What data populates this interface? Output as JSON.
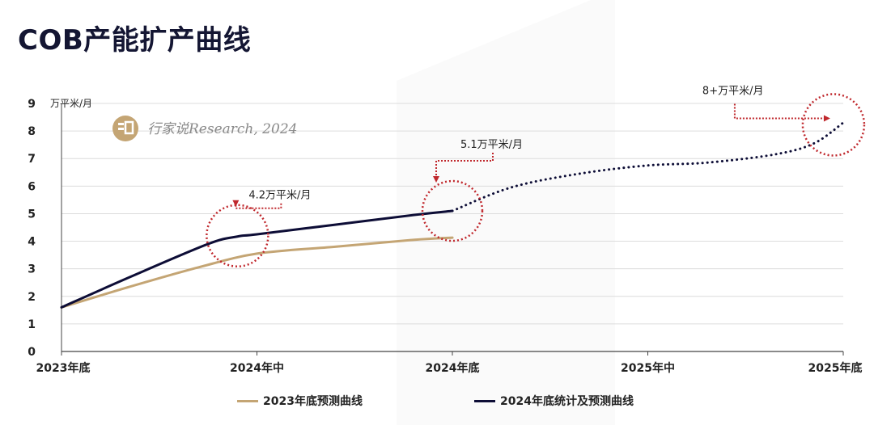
{
  "page": {
    "title": "COB产能扩产曲线"
  },
  "watermark": {
    "text": "行家说Research, 2024"
  },
  "colors": {
    "series1": "#c4a574",
    "series2": "#0d0d36",
    "highlight": "#c0282d",
    "grid": "#dcdcdc"
  },
  "chart_data": {
    "type": "line",
    "ylabel": "万平米/月",
    "ylim": [
      0,
      9
    ],
    "yticks": [
      "0",
      "1",
      "2",
      "3",
      "4",
      "5",
      "6",
      "7",
      "8",
      "9"
    ],
    "categories": [
      "2023年底",
      "2024年中",
      "2024年底",
      "2025年中",
      "2025年底"
    ],
    "grid": true,
    "legend_position": "bottom",
    "series": [
      {
        "name": "2023年底预测曲线",
        "style": "solid",
        "points": [
          [
            0,
            1.6
          ],
          [
            0.35,
            2.35
          ],
          [
            0.7,
            3.05
          ],
          [
            1.0,
            3.55
          ],
          [
            1.4,
            3.8
          ],
          [
            1.8,
            4.05
          ],
          [
            2.0,
            4.13
          ]
        ]
      },
      {
        "name": "2024年底统计及预测曲线",
        "style": "solid",
        "points": [
          [
            0,
            1.6
          ],
          [
            0.35,
            2.7
          ],
          [
            0.75,
            3.9
          ],
          [
            0.9,
            4.17
          ],
          [
            1.0,
            4.25
          ],
          [
            1.4,
            4.6
          ],
          [
            1.8,
            4.95
          ],
          [
            2.0,
            5.1
          ]
        ]
      },
      {
        "name": "",
        "style": "dotted",
        "points": [
          [
            2.0,
            5.1
          ],
          [
            2.3,
            5.95
          ],
          [
            2.65,
            6.45
          ],
          [
            3.0,
            6.75
          ],
          [
            3.3,
            6.85
          ],
          [
            3.65,
            7.15
          ],
          [
            3.85,
            7.55
          ],
          [
            4.0,
            8.3
          ]
        ]
      }
    ],
    "annotations": [
      {
        "text": "4.2万平米/月",
        "x": 0.9,
        "y": 4.2
      },
      {
        "text": "5.1万平米/月",
        "x": 2.0,
        "y": 5.1
      },
      {
        "text": "8+万平米/月",
        "x": 3.95,
        "y": 8.4
      }
    ]
  }
}
